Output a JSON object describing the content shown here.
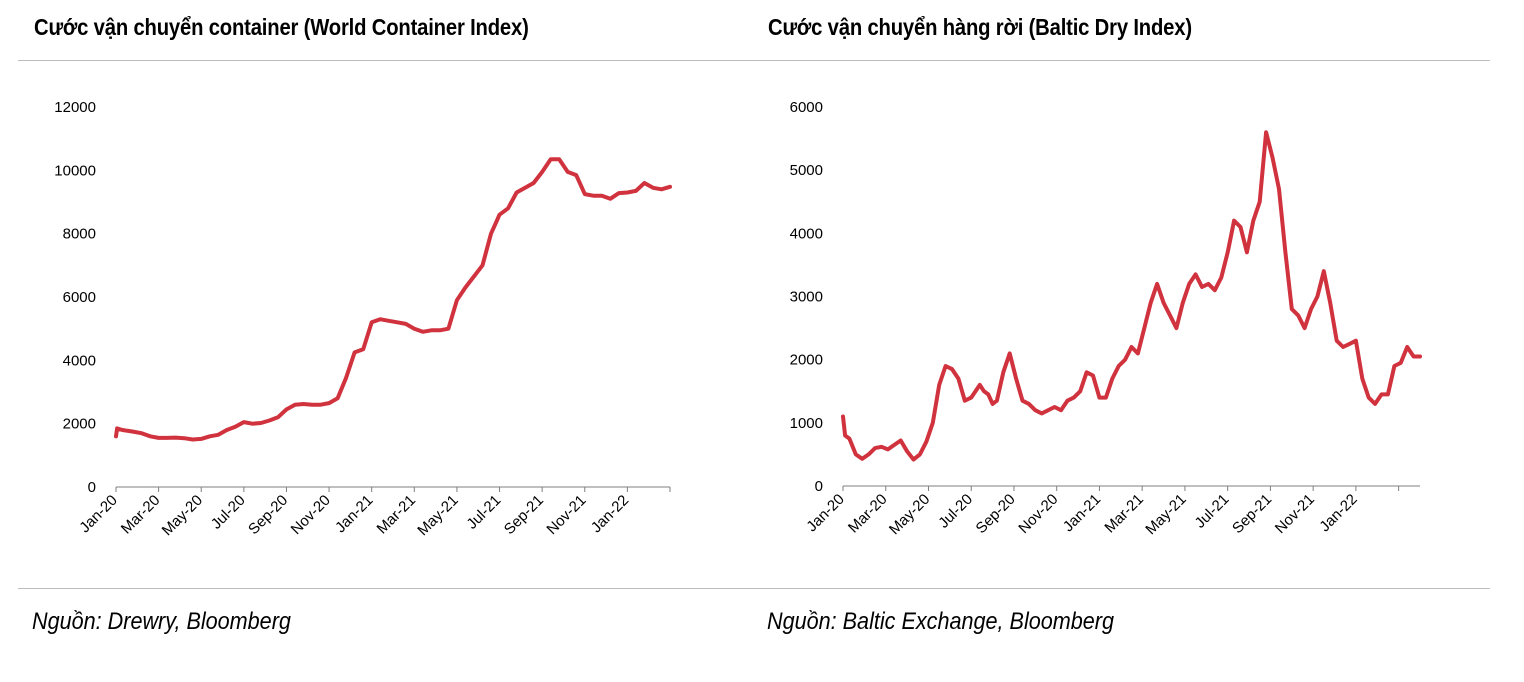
{
  "left": {
    "title": "Cước vận chuyển container (World Container Index)",
    "source": "Nguồn: Drewry, Bloomberg"
  },
  "right": {
    "title": "Cước vận chuyển hàng rời (Baltic Dry Index)",
    "source": "Nguồn: Baltic Exchange, Bloomberg"
  },
  "line_color": "#d0323e",
  "chart_data": [
    {
      "type": "line",
      "title": "Cước vận chuyển container (World Container Index)",
      "xlabel": "",
      "ylabel": "",
      "ylim": [
        0,
        12000
      ],
      "yticks": [
        "0",
        "2000",
        "4000",
        "6000",
        "8000",
        "10000",
        "12000"
      ],
      "xticks": [
        "Jan-20",
        "Mar-20",
        "May-20",
        "Jul-20",
        "Sep-20",
        "Nov-20",
        "Jan-21",
        "Mar-21",
        "May-21",
        "Jul-21",
        "Sep-21",
        "Nov-21",
        "Jan-22"
      ],
      "xlim_months": [
        0,
        26
      ],
      "series": [
        {
          "name": "World Container Index",
          "x": [
            0,
            0.05,
            0.3,
            0.8,
            1.2,
            1.6,
            2.0,
            2.4,
            2.8,
            3.2,
            3.6,
            4.0,
            4.4,
            4.8,
            5.2,
            5.6,
            6.0,
            6.4,
            6.8,
            7.2,
            7.6,
            8.0,
            8.4,
            8.8,
            9.2,
            9.6,
            10.0,
            10.4,
            10.8,
            11.2,
            11.6,
            12.0,
            12.4,
            12.8,
            13.2,
            13.6,
            14.0,
            14.4,
            14.8,
            15.2,
            15.6,
            16.0,
            16.4,
            16.8,
            17.2,
            17.6,
            17.8,
            18.0,
            18.4,
            18.8,
            19.2,
            19.6,
            20.0,
            20.4,
            20.8,
            21.2,
            21.6,
            22.0,
            22.4,
            22.8,
            23.2,
            23.6,
            24.0,
            24.4,
            24.8,
            25.2,
            25.6,
            26.0
          ],
          "y": [
            1600,
            1850,
            1800,
            1750,
            1700,
            1600,
            1550,
            1550,
            1560,
            1540,
            1500,
            1520,
            1600,
            1650,
            1800,
            1900,
            2050,
            2000,
            2020,
            2100,
            2200,
            2450,
            2600,
            2620,
            2600,
            2600,
            2650,
            2800,
            3450,
            4250,
            4350,
            5200,
            5300,
            5250,
            5200,
            5150,
            5000,
            4900,
            4950,
            4950,
            5000,
            5900,
            6300,
            6650,
            7000,
            8000,
            8300,
            8600,
            8800,
            9300,
            9450,
            9600,
            9950,
            10350,
            10350,
            9950,
            9850,
            9250,
            9200,
            9200,
            9100,
            9280,
            9300,
            9350,
            9600,
            9450,
            9400,
            9480
          ]
        }
      ]
    },
    {
      "type": "line",
      "title": "Cước vận chuyển hàng rời (Baltic Dry Index)",
      "xlabel": "",
      "ylabel": "",
      "ylim": [
        0,
        6000
      ],
      "yticks": [
        "0",
        "1000",
        "2000",
        "3000",
        "4000",
        "5000",
        "6000"
      ],
      "xticks": [
        "Jan-20",
        "Mar-20",
        "May-20",
        "Jul-20",
        "Sep-20",
        "Nov-20",
        "Jan-21",
        "Mar-21",
        "May-21",
        "Jul-21",
        "Sep-21",
        "Nov-21",
        "Jan-22"
      ],
      "xlim_months": [
        0,
        27
      ],
      "series": [
        {
          "name": "Baltic Dry Index",
          "x": [
            0,
            0.1,
            0.3,
            0.6,
            0.9,
            1.2,
            1.5,
            1.8,
            2.1,
            2.4,
            2.7,
            3.0,
            3.3,
            3.6,
            3.9,
            4.2,
            4.5,
            4.8,
            5.1,
            5.4,
            5.7,
            6.0,
            6.2,
            6.4,
            6.6,
            6.8,
            7.0,
            7.2,
            7.5,
            7.8,
            8.1,
            8.4,
            8.7,
            9.0,
            9.3,
            9.6,
            9.9,
            10.2,
            10.5,
            10.8,
            11.1,
            11.4,
            11.7,
            12.0,
            12.3,
            12.6,
            12.9,
            13.2,
            13.5,
            13.8,
            14.1,
            14.4,
            14.7,
            15.0,
            15.3,
            15.6,
            15.9,
            16.2,
            16.5,
            16.8,
            17.1,
            17.4,
            17.7,
            18.0,
            18.3,
            18.6,
            18.9,
            19.2,
            19.5,
            19.8,
            20.1,
            20.4,
            20.7,
            21.0,
            21.3,
            21.6,
            21.9,
            22.2,
            22.5,
            22.8,
            23.1,
            23.4,
            23.7,
            24.0,
            24.3,
            24.6,
            24.9,
            25.2,
            25.5,
            25.8,
            26.1,
            26.4,
            26.7,
            27.0
          ],
          "y": [
            1100,
            800,
            750,
            500,
            430,
            500,
            600,
            620,
            580,
            650,
            720,
            550,
            420,
            500,
            700,
            1000,
            1600,
            1900,
            1850,
            1700,
            1350,
            1400,
            1500,
            1600,
            1500,
            1450,
            1300,
            1350,
            1800,
            2100,
            1700,
            1350,
            1300,
            1200,
            1150,
            1200,
            1250,
            1200,
            1350,
            1400,
            1500,
            1800,
            1750,
            1400,
            1400,
            1700,
            1900,
            2000,
            2200,
            2100,
            2500,
            2900,
            3200,
            2900,
            2700,
            2500,
            2900,
            3200,
            3350,
            3150,
            3200,
            3100,
            3300,
            3700,
            4200,
            4100,
            3700,
            4200,
            4500,
            5600,
            5200,
            4700,
            3700,
            2800,
            2700,
            2500,
            2800,
            3000,
            3400,
            2900,
            2300,
            2200,
            2250,
            2300,
            1700,
            1400,
            1300,
            1450,
            1450,
            1900,
            1950,
            2200,
            2050,
            2050
          ]
        }
      ]
    }
  ]
}
